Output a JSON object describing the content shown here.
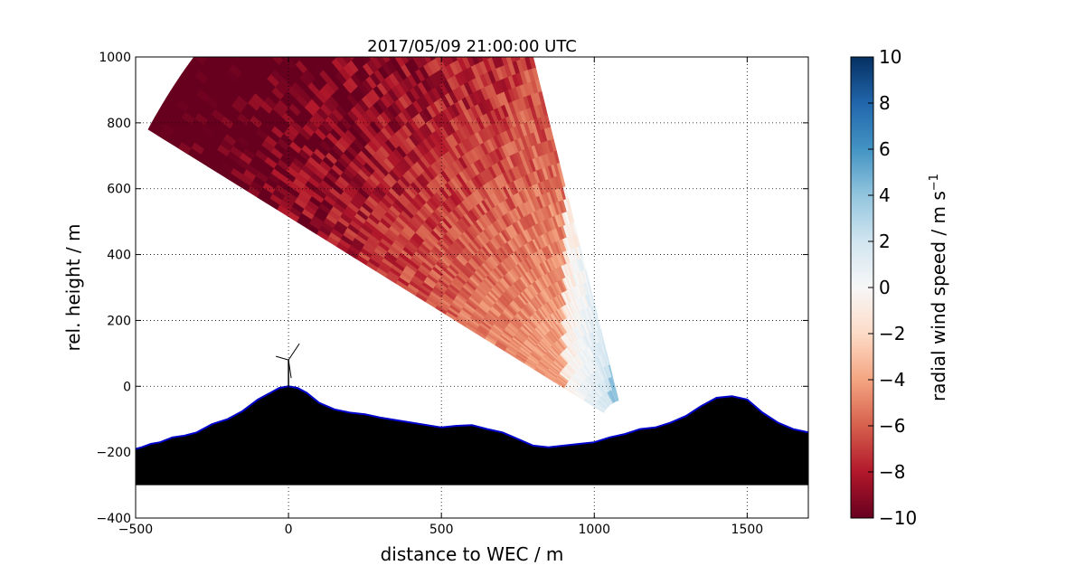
{
  "chart_data": {
    "type": "heatmap",
    "title": "2017/05/09 21:00:00 UTC",
    "xlabel": "distance to WEC / m",
    "ylabel": "rel. height / m",
    "xlim": [
      -500,
      1700
    ],
    "ylim": [
      -400,
      1000
    ],
    "xticks": [
      -500,
      0,
      500,
      1000,
      1500
    ],
    "yticks": [
      -400,
      -200,
      0,
      200,
      400,
      600,
      800,
      1000
    ],
    "xtick_labels": [
      "−500",
      "0",
      "500",
      "1000",
      "1500"
    ],
    "ytick_labels": [
      "−400",
      "−200",
      "0",
      "200",
      "400",
      "600",
      "800",
      "1000"
    ],
    "grid": true,
    "colorbar": {
      "label": "radial wind speed / m s",
      "label_superscript": "−1",
      "range": [
        -10,
        10
      ],
      "ticks": [
        -10,
        -8,
        -6,
        -4,
        -2,
        0,
        2,
        4,
        6,
        8,
        10
      ],
      "tick_labels": [
        "−10",
        "−8",
        "−6",
        "−4",
        "−2",
        "0",
        "2",
        "4",
        "6",
        "8",
        "10"
      ],
      "colormap": "RdBu",
      "colormap_stops": [
        "#67001f",
        "#b2182b",
        "#d6604d",
        "#f4a582",
        "#fddbc7",
        "#f7f7f7",
        "#d1e5f0",
        "#92c5de",
        "#4393c3",
        "#2166ac",
        "#053061"
      ]
    },
    "scan": {
      "origin": [
        1100,
        -120
      ],
      "azimuth_range_deg": [
        105,
        150
      ],
      "max_range_m": 1800,
      "min_range_m": 80
    },
    "wind_field_description_values": {
      "left_region_mean": -8.5,
      "center_region_mean": -4,
      "right_region_mean": 4
    },
    "terrain": {
      "x": [
        -500,
        -480,
        -450,
        -420,
        -380,
        -340,
        -300,
        -250,
        -200,
        -150,
        -100,
        -60,
        -30,
        0,
        30,
        60,
        100,
        150,
        200,
        250,
        300,
        400,
        500,
        550,
        600,
        650,
        700,
        750,
        800,
        850,
        900,
        950,
        1000,
        1050,
        1100,
        1150,
        1200,
        1250,
        1300,
        1350,
        1400,
        1450,
        1500,
        1550,
        1600,
        1650,
        1700
      ],
      "y": [
        -190,
        -185,
        -175,
        -170,
        -155,
        -150,
        -140,
        -115,
        -100,
        -75,
        -40,
        -20,
        -5,
        0,
        -5,
        -20,
        -50,
        -70,
        -80,
        -85,
        -95,
        -110,
        -125,
        -120,
        -118,
        -130,
        -140,
        -160,
        -180,
        -185,
        -180,
        -175,
        -170,
        -155,
        -145,
        -130,
        -125,
        -110,
        -90,
        -60,
        -35,
        -30,
        -40,
        -80,
        -110,
        -130,
        -140
      ],
      "bottom": -300,
      "fill_color": "#000000",
      "edge_color": "#0000cc"
    },
    "turbine": {
      "x": 0,
      "hub_height": 80
    }
  }
}
